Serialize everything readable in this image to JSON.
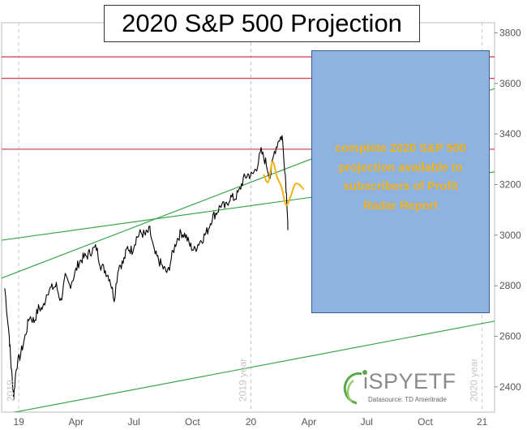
{
  "chart_data": {
    "type": "line",
    "title": "2020 S&P 500 Projection",
    "xlabel": "",
    "ylabel": "",
    "x_ticks": [
      "19",
      "Apr",
      "Jul",
      "Oct",
      "20",
      "Apr",
      "Jul",
      "Oct",
      "21"
    ],
    "y_ticks": [
      2400,
      2600,
      2800,
      3000,
      3200,
      3400,
      3600,
      3800
    ],
    "ylim": [
      2300,
      3840
    ],
    "x_range": [
      "2018-12-05",
      "2021-01-18"
    ],
    "grid": false,
    "year_labels": [
      "2019",
      "2019 year",
      "2020 year"
    ],
    "series": [
      {
        "x": [
          "2018-12-10",
          "2018-12-17",
          "2018-12-20",
          "2018-12-24",
          "2018-12-28",
          "2019-01-04",
          "2019-01-11",
          "2019-01-18",
          "2019-01-25",
          "2019-02-01",
          "2019-02-08",
          "2019-02-15",
          "2019-02-22",
          "2019-03-01",
          "2019-03-08",
          "2019-03-15",
          "2019-03-22",
          "2019-03-29",
          "2019-04-05",
          "2019-04-12",
          "2019-04-19",
          "2019-04-26",
          "2019-05-03",
          "2019-05-10",
          "2019-05-17",
          "2019-05-24",
          "2019-05-31",
          "2019-06-07",
          "2019-06-14",
          "2019-06-21",
          "2019-06-28",
          "2019-07-05",
          "2019-07-12",
          "2019-07-19",
          "2019-07-26",
          "2019-08-02",
          "2019-08-09",
          "2019-08-16",
          "2019-08-23",
          "2019-08-30",
          "2019-09-06",
          "2019-09-13",
          "2019-09-20",
          "2019-09-27",
          "2019-10-04",
          "2019-10-11",
          "2019-10-18",
          "2019-10-25",
          "2019-11-01",
          "2019-11-08",
          "2019-11-15",
          "2019-11-22",
          "2019-11-29",
          "2019-12-06",
          "2019-12-13",
          "2019-12-20",
          "2019-12-27",
          "2020-01-03",
          "2020-01-10",
          "2020-01-17",
          "2020-01-24",
          "2020-01-31",
          "2020-02-07",
          "2020-02-14",
          "2020-02-19",
          "2020-02-24",
          "2020-02-27",
          "2020-02-28"
        ],
        "values": [
          2790,
          2600,
          2480,
          2360,
          2480,
          2530,
          2600,
          2680,
          2660,
          2710,
          2710,
          2780,
          2790,
          2800,
          2740,
          2830,
          2800,
          2840,
          2890,
          2910,
          2920,
          2940,
          2950,
          2880,
          2860,
          2830,
          2750,
          2880,
          2890,
          2950,
          2940,
          2990,
          3010,
          3000,
          3020,
          2930,
          2900,
          2870,
          2850,
          2920,
          2980,
          3010,
          3000,
          2960,
          2940,
          2970,
          2990,
          3020,
          3070,
          3090,
          3120,
          3110,
          3150,
          3145,
          3170,
          3220,
          3240,
          3235,
          3270,
          3330,
          3290,
          3230,
          3330,
          3380,
          3390,
          3240,
          3110,
          3020
        ]
      },
      {
        "name": "",
        "x": [
          "2020-01-21",
          "2020-01-28",
          "2020-02-04",
          "2020-02-11",
          "2020-02-18",
          "2020-02-25",
          "2020-03-03",
          "2020-03-10",
          "2020-03-17",
          "2020-03-24"
        ],
        "values": [
          3240,
          3210,
          3290,
          3230,
          3190,
          3120,
          3150,
          3200,
          3200,
          3180
        ]
      }
    ],
    "horizontal_lines": [
      3340,
      3620,
      3705
    ],
    "trend_lines": [
      {
        "from": [
          "2018-12-05",
          2830
        ],
        "to": [
          "2021-01-18",
          3580
        ]
      },
      {
        "from": [
          "2018-12-05",
          2980
        ],
        "to": [
          "2021-01-18",
          3250
        ]
      },
      {
        "from": [
          "2018-12-05",
          2290
        ],
        "to": [
          "2021-01-18",
          2660
        ]
      }
    ]
  },
  "promo": {
    "text": "complete 2020 S&P 500 projection available to subscribers of Profit Radar Report"
  },
  "logo": {
    "name": "iSPYETF",
    "subtitle": "Datasource: TD Ameritrade"
  },
  "colors": {
    "price": "#000000",
    "projection": "#f2b21a",
    "resistance": "#d04a5a",
    "trend": "#3aa64a",
    "promo_bg": "#8fb3e0"
  }
}
